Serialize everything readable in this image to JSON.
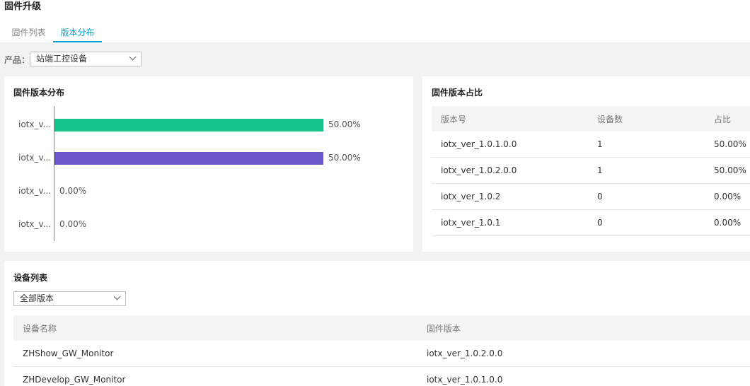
{
  "page": {
    "title": "固件升级"
  },
  "tabs": [
    {
      "label": "固件列表",
      "active": false
    },
    {
      "label": "版本分布",
      "active": true
    }
  ],
  "product": {
    "label": "产品：",
    "selected": "站端工控设备"
  },
  "distribution": {
    "title": "固件版本分布",
    "colors": [
      "#12c28a",
      "#6a55c9",
      "#12c28a",
      "#6a55c9"
    ],
    "chart_data": {
      "type": "bar",
      "orientation": "horizontal",
      "categories": [
        "iotx_v...",
        "iotx_v...",
        "iotx_v...",
        "iotx_v..."
      ],
      "values": [
        50.0,
        50.0,
        0.0,
        0.0
      ],
      "value_labels": [
        "50.00%",
        "50.00%",
        "0.00%",
        "0.00%"
      ],
      "xlim": [
        0,
        100
      ],
      "title": "固件版本分布"
    }
  },
  "ratio": {
    "title": "固件版本占比",
    "columns": [
      "版本号",
      "设备数",
      "占比"
    ],
    "rows": [
      {
        "version": "iotx_ver_1.0.1.0.0",
        "count": "1",
        "ratio": "50.00%"
      },
      {
        "version": "iotx_ver_1.0.2.0.0",
        "count": "1",
        "ratio": "50.00%"
      },
      {
        "version": "iotx_ver_1.0.2",
        "count": "0",
        "ratio": "0.00%"
      },
      {
        "version": "iotx_ver_1.0.1",
        "count": "0",
        "ratio": "0.00%"
      }
    ]
  },
  "devices": {
    "title": "设备列表",
    "filter": "全部版本",
    "columns": [
      "设备名称",
      "固件版本"
    ],
    "rows": [
      {
        "name": "ZHShow_GW_Monitor",
        "version": "iotx_ver_1.0.2.0.0"
      },
      {
        "name": "ZHDevelop_GW_Monitor",
        "version": "iotx_ver_1.0.1.0.0"
      }
    ]
  }
}
